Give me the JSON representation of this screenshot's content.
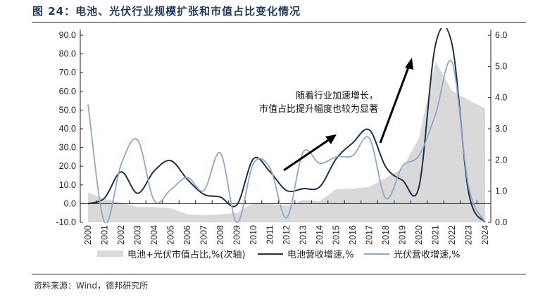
{
  "title": "图 24：电池、光伏行业规模扩张和市值占比变化情况",
  "source": "资料来源：Wind，德邦研究所",
  "chart_data": {
    "type": "line",
    "categories": [
      "2000",
      "2001",
      "2002",
      "2003",
      "2004",
      "2005",
      "2006",
      "2007",
      "2008",
      "2009",
      "2010",
      "2011",
      "2012",
      "2013",
      "2014",
      "2015",
      "2016",
      "2017",
      "2018",
      "2019",
      "2020",
      "2021",
      "2022",
      "2023",
      "2024"
    ],
    "left_axis": {
      "ylim": [
        -10,
        90
      ],
      "ticks": [
        "-10.0",
        "0.0",
        "10.0",
        "20.0",
        "30.0",
        "40.0",
        "50.0",
        "60.0",
        "70.0",
        "80.0",
        "90.0"
      ]
    },
    "right_axis": {
      "ylim": [
        0,
        6
      ],
      "ticks": [
        "0.0",
        "1.0",
        "2.0",
        "3.0",
        "4.0",
        "5.0",
        "6.0"
      ]
    },
    "grid": false,
    "legend_position": "bottom",
    "series": [
      {
        "name": "电池+光伏市值占比,%(次轴)",
        "type": "area",
        "axis": "right",
        "color": "#d9d9d9",
        "values": [
          0.96,
          0.75,
          0.64,
          0.49,
          0.49,
          0.45,
          0.26,
          0.23,
          0.26,
          0.3,
          0.64,
          0.59,
          0.54,
          0.72,
          0.68,
          1.07,
          1.08,
          1.14,
          1.43,
          1.73,
          2.71,
          5.16,
          4.22,
          3.92,
          3.65
        ]
      },
      {
        "name": "电池营收增速,%",
        "type": "line",
        "axis": "left",
        "color": "#1f3049",
        "values": [
          0,
          3,
          17,
          5.5,
          17.5,
          23,
          13,
          5,
          3.5,
          -0.6,
          24,
          17,
          7,
          8,
          9,
          24,
          32.5,
          39.4,
          19.5,
          12.5,
          9,
          85,
          85,
          6,
          -10
        ]
      },
      {
        "name": "光伏营收增速,%",
        "type": "line",
        "axis": "left",
        "color": "#8aa9cc",
        "values": [
          53,
          -10,
          21,
          34,
          1.6,
          7.5,
          14,
          7,
          27,
          -10,
          21.5,
          19,
          -7.5,
          27.5,
          21.5,
          25,
          25.7,
          35,
          2.8,
          20,
          25.7,
          47.7,
          75.5,
          9,
          -10
        ]
      }
    ],
    "annotations": [
      "随着行业加速增长，",
      "市值占比提升幅度也较为显著"
    ]
  }
}
